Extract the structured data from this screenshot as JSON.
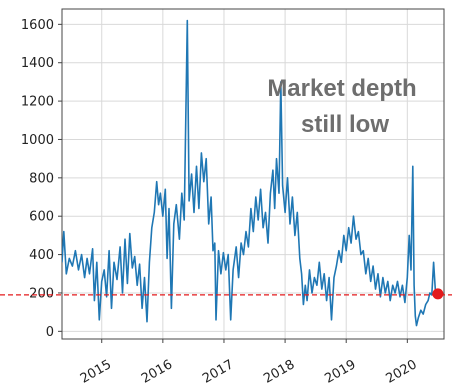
{
  "chart_data": {
    "type": "line",
    "title": "",
    "xlabel": "",
    "ylabel": "",
    "xlim": [
      2014.35,
      2020.6
    ],
    "ylim": [
      -40,
      1680
    ],
    "y_ticks": [
      "0",
      "200",
      "400",
      "600",
      "800",
      "1000",
      "1200",
      "1400",
      "1600"
    ],
    "y_tick_values": [
      0,
      200,
      400,
      600,
      800,
      1000,
      1200,
      1400,
      1600
    ],
    "x_ticks": [
      "2015",
      "2016",
      "2017",
      "2018",
      "2019",
      "2020"
    ],
    "x_tick_values": [
      2015,
      2016,
      2017,
      2018,
      2019,
      2020
    ],
    "grid": true,
    "annotations": [
      {
        "lines": [
          "Market depth",
          "still low"
        ],
        "color": "#6e6e6e"
      }
    ],
    "reference_line": {
      "y": 190,
      "color": "#e31a1c",
      "style": "dashed"
    },
    "end_marker": {
      "x": 2020.5,
      "y": 195,
      "color": "#e31a1c"
    },
    "series": [
      {
        "color": "#1f77b4",
        "points": [
          [
            2014.35,
            360
          ],
          [
            2014.38,
            520
          ],
          [
            2014.42,
            300
          ],
          [
            2014.47,
            380
          ],
          [
            2014.52,
            340
          ],
          [
            2014.57,
            420
          ],
          [
            2014.62,
            320
          ],
          [
            2014.67,
            400
          ],
          [
            2014.72,
            280
          ],
          [
            2014.76,
            380
          ],
          [
            2014.8,
            300
          ],
          [
            2014.85,
            430
          ],
          [
            2014.88,
            160
          ],
          [
            2014.92,
            360
          ],
          [
            2014.96,
            60
          ],
          [
            2015.0,
            260
          ],
          [
            2015.04,
            320
          ],
          [
            2015.08,
            180
          ],
          [
            2015.12,
            420
          ],
          [
            2015.16,
            120
          ],
          [
            2015.2,
            360
          ],
          [
            2015.25,
            270
          ],
          [
            2015.3,
            440
          ],
          [
            2015.34,
            200
          ],
          [
            2015.38,
            480
          ],
          [
            2015.42,
            250
          ],
          [
            2015.46,
            510
          ],
          [
            2015.5,
            330
          ],
          [
            2015.54,
            390
          ],
          [
            2015.58,
            240
          ],
          [
            2015.62,
            350
          ],
          [
            2015.66,
            120
          ],
          [
            2015.7,
            280
          ],
          [
            2015.74,
            50
          ],
          [
            2015.78,
            360
          ],
          [
            2015.82,
            540
          ],
          [
            2015.86,
            620
          ],
          [
            2015.9,
            780
          ],
          [
            2015.93,
            660
          ],
          [
            2015.96,
            720
          ],
          [
            2016.0,
            600
          ],
          [
            2016.04,
            740
          ],
          [
            2016.07,
            380
          ],
          [
            2016.1,
            640
          ],
          [
            2016.14,
            120
          ],
          [
            2016.18,
            560
          ],
          [
            2016.22,
            660
          ],
          [
            2016.27,
            480
          ],
          [
            2016.31,
            720
          ],
          [
            2016.35,
            580
          ],
          [
            2016.4,
            1620
          ],
          [
            2016.43,
            680
          ],
          [
            2016.47,
            820
          ],
          [
            2016.51,
            620
          ],
          [
            2016.55,
            860
          ],
          [
            2016.59,
            640
          ],
          [
            2016.63,
            930
          ],
          [
            2016.67,
            780
          ],
          [
            2016.71,
            900
          ],
          [
            2016.75,
            560
          ],
          [
            2016.79,
            700
          ],
          [
            2016.82,
            420
          ],
          [
            2016.85,
            460
          ],
          [
            2016.87,
            60
          ],
          [
            2016.91,
            420
          ],
          [
            2016.95,
            300
          ],
          [
            2016.99,
            410
          ],
          [
            2017.03,
            320
          ],
          [
            2017.07,
            400
          ],
          [
            2017.11,
            60
          ],
          [
            2017.15,
            320
          ],
          [
            2017.2,
            440
          ],
          [
            2017.24,
            280
          ],
          [
            2017.28,
            460
          ],
          [
            2017.32,
            400
          ],
          [
            2017.36,
            520
          ],
          [
            2017.4,
            440
          ],
          [
            2017.44,
            640
          ],
          [
            2017.48,
            520
          ],
          [
            2017.52,
            700
          ],
          [
            2017.56,
            580
          ],
          [
            2017.6,
            740
          ],
          [
            2017.64,
            540
          ],
          [
            2017.68,
            620
          ],
          [
            2017.72,
            460
          ],
          [
            2017.76,
            720
          ],
          [
            2017.8,
            840
          ],
          [
            2017.83,
            640
          ],
          [
            2017.86,
            900
          ],
          [
            2017.9,
            720
          ],
          [
            2017.93,
            1300
          ],
          [
            2017.96,
            760
          ],
          [
            2018.0,
            620
          ],
          [
            2018.04,
            800
          ],
          [
            2018.08,
            560
          ],
          [
            2018.12,
            700
          ],
          [
            2018.16,
            500
          ],
          [
            2018.2,
            620
          ],
          [
            2018.24,
            380
          ],
          [
            2018.27,
            300
          ],
          [
            2018.3,
            140
          ],
          [
            2018.33,
            240
          ],
          [
            2018.36,
            160
          ],
          [
            2018.4,
            320
          ],
          [
            2018.44,
            200
          ],
          [
            2018.48,
            280
          ],
          [
            2018.52,
            240
          ],
          [
            2018.56,
            360
          ],
          [
            2018.6,
            220
          ],
          [
            2018.64,
            300
          ],
          [
            2018.68,
            160
          ],
          [
            2018.72,
            280
          ],
          [
            2018.76,
            60
          ],
          [
            2018.8,
            280
          ],
          [
            2018.84,
            340
          ],
          [
            2018.88,
            420
          ],
          [
            2018.92,
            360
          ],
          [
            2018.96,
            500
          ],
          [
            2019.0,
            420
          ],
          [
            2019.04,
            540
          ],
          [
            2019.08,
            460
          ],
          [
            2019.12,
            600
          ],
          [
            2019.16,
            480
          ],
          [
            2019.2,
            520
          ],
          [
            2019.24,
            400
          ],
          [
            2019.28,
            420
          ],
          [
            2019.32,
            300
          ],
          [
            2019.36,
            380
          ],
          [
            2019.4,
            260
          ],
          [
            2019.44,
            340
          ],
          [
            2019.48,
            220
          ],
          [
            2019.52,
            300
          ],
          [
            2019.56,
            180
          ],
          [
            2019.6,
            280
          ],
          [
            2019.64,
            200
          ],
          [
            2019.68,
            260
          ],
          [
            2019.72,
            160
          ],
          [
            2019.76,
            240
          ],
          [
            2019.8,
            200
          ],
          [
            2019.84,
            260
          ],
          [
            2019.88,
            180
          ],
          [
            2019.92,
            240
          ],
          [
            2019.96,
            150
          ],
          [
            2020.0,
            280
          ],
          [
            2020.03,
            500
          ],
          [
            2020.06,
            320
          ],
          [
            2020.09,
            860
          ],
          [
            2020.11,
            240
          ],
          [
            2020.13,
            80
          ],
          [
            2020.15,
            30
          ],
          [
            2020.18,
            70
          ],
          [
            2020.22,
            110
          ],
          [
            2020.26,
            90
          ],
          [
            2020.3,
            140
          ],
          [
            2020.34,
            160
          ],
          [
            2020.37,
            200
          ],
          [
            2020.4,
            190
          ],
          [
            2020.43,
            360
          ],
          [
            2020.46,
            210
          ],
          [
            2020.5,
            200
          ]
        ]
      }
    ]
  }
}
